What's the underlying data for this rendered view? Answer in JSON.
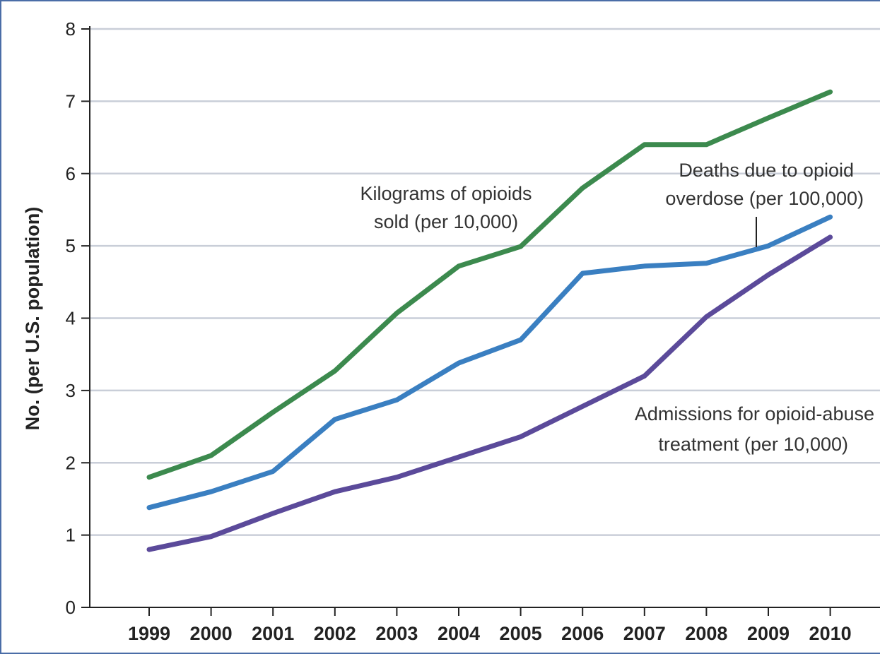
{
  "chart_data": {
    "type": "line",
    "title": "",
    "xlabel": "",
    "ylabel": "No. (per U.S. population)",
    "ylim": [
      0,
      8
    ],
    "yticks": [
      "0",
      "1",
      "2",
      "3",
      "4",
      "5",
      "6",
      "7",
      "8"
    ],
    "grid": true,
    "legend": "none (series labeled by in-plot annotations)",
    "x": [
      "1999",
      "2000",
      "2001",
      "2002",
      "2003",
      "2004",
      "2005",
      "2006",
      "2007",
      "2008",
      "2009",
      "2010"
    ],
    "series": [
      {
        "key": "sold",
        "color": "#3c8a4e",
        "values": [
          1.8,
          2.1,
          2.7,
          3.27,
          4.07,
          4.72,
          4.99,
          5.8,
          6.4,
          6.4,
          6.77,
          7.13
        ]
      },
      {
        "key": "deaths",
        "color": "#3a7fc1",
        "values": [
          1.38,
          1.6,
          1.88,
          2.6,
          2.87,
          3.38,
          3.7,
          4.62,
          4.72,
          4.76,
          5.0,
          5.4
        ]
      },
      {
        "key": "admissions",
        "color": "#5b4a9a",
        "values": [
          0.8,
          0.98,
          1.3,
          1.6,
          1.8,
          2.08,
          2.36,
          2.78,
          3.2,
          4.02,
          4.6,
          5.12
        ]
      }
    ],
    "annotations": [
      {
        "series": "sold",
        "lines": [
          "Kilograms of opioids",
          "sold (per 10,000)"
        ]
      },
      {
        "series": "deaths",
        "lines": [
          "Deaths due to opioid",
          "overdose (per 100,000)"
        ]
      },
      {
        "series": "admissions",
        "lines": [
          "Admissions for opioid-abuse",
          "treatment (per 10,000)"
        ]
      }
    ]
  }
}
